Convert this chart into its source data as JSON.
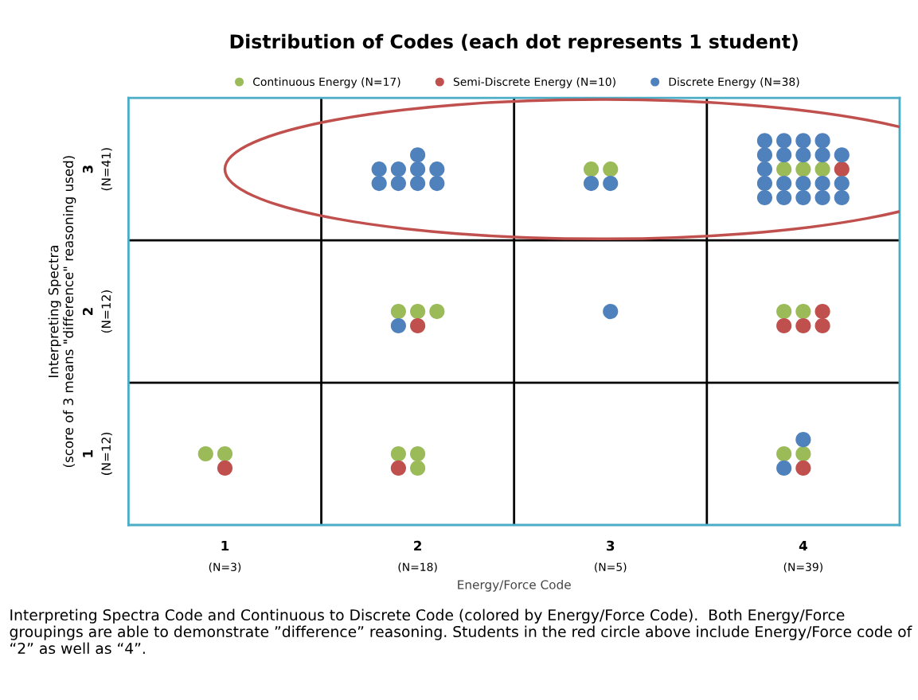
{
  "chart_data": {
    "type": "scatter",
    "title": "Distribution of Codes (each dot represents 1 student)",
    "xlabel": "Energy/Force Code",
    "ylabel": "Interpreting Spectra\n(score of 3 means \"difference\" reasoning used)",
    "xlim": [
      0.5,
      4.5
    ],
    "ylim": [
      0.5,
      3.5
    ],
    "xticks": [
      1,
      2,
      3,
      4
    ],
    "yticks": [
      1,
      2,
      3
    ],
    "series": [
      {
        "name": "Continuous Energy (N=17)",
        "color": "#9bbb59",
        "x": [
          0.9,
          1.0,
          1.9,
          2.0,
          2.0,
          3.9,
          4.0,
          1.9,
          2.0,
          2.1,
          3.9,
          4.0,
          2.9,
          3.0,
          3.9,
          4.0,
          4.1
        ],
        "values": [
          1.0,
          1.0,
          1.0,
          1.0,
          0.9,
          1.0,
          1.0,
          2.0,
          2.0,
          2.0,
          2.0,
          2.0,
          3.0,
          3.0,
          3.0,
          3.0,
          3.0
        ]
      },
      {
        "name": "Semi-Discrete Energy (N=10)",
        "color": "#c0504d",
        "x": [
          1.0,
          1.9,
          4.0,
          2.0,
          4.1,
          3.9,
          4.0,
          4.1,
          4.2
        ],
        "values": [
          0.9,
          0.9,
          0.9,
          1.9,
          2.0,
          1.9,
          1.9,
          1.9,
          3.0
        ]
      },
      {
        "name": "Discrete Energy (N=38)",
        "color": "#4f81bd",
        "x": [
          4.0,
          3.9,
          1.9,
          3.0,
          2.0,
          1.8,
          1.9,
          2.0,
          2.1,
          1.8,
          1.9,
          2.0,
          2.1,
          2.9,
          3.0,
          3.8,
          3.9,
          4.0,
          4.1,
          3.8,
          3.9,
          4.0,
          4.1,
          4.2,
          3.8,
          3.8,
          3.9,
          4.0,
          4.1,
          4.2,
          3.8,
          3.9,
          4.0,
          4.1,
          4.2
        ],
        "values": [
          1.1,
          0.9,
          1.9,
          2.0,
          3.1,
          3.0,
          3.0,
          3.0,
          3.0,
          2.9,
          2.9,
          2.9,
          2.9,
          2.9,
          2.9,
          3.2,
          3.2,
          3.2,
          3.2,
          3.1,
          3.1,
          3.1,
          3.1,
          3.1,
          3.0,
          2.9,
          2.9,
          2.9,
          2.9,
          2.9,
          2.8,
          2.8,
          2.8,
          2.8,
          2.8
        ]
      }
    ],
    "ref_lines": [
      {
        "axis": "x",
        "value": 1.5,
        "color": "#000000"
      },
      {
        "axis": "x",
        "value": 2.5,
        "color": "#000000"
      },
      {
        "axis": "x",
        "value": 3.5,
        "color": "#000000"
      },
      {
        "axis": "y",
        "value": 1.5,
        "color": "#000000"
      },
      {
        "axis": "y",
        "value": 2.5,
        "color": "#000000"
      }
    ],
    "marker": "circle",
    "legend": "top",
    "grid": false,
    "annotations": [
      "(N=3)",
      "(N=18)",
      "(N=5)",
      "(N=39)",
      "(N=12)",
      "(N=12)",
      "(N=41)",
      "Interpreting Spectra Code and Continuous to Discrete Code (colored by Energy/Force Code).  Both Energy/Force groupings are able to demonstrate ”difference” reasoning. Students in the red circle above include Energy/Force code of “2” as well as “4”."
    ]
  }
}
